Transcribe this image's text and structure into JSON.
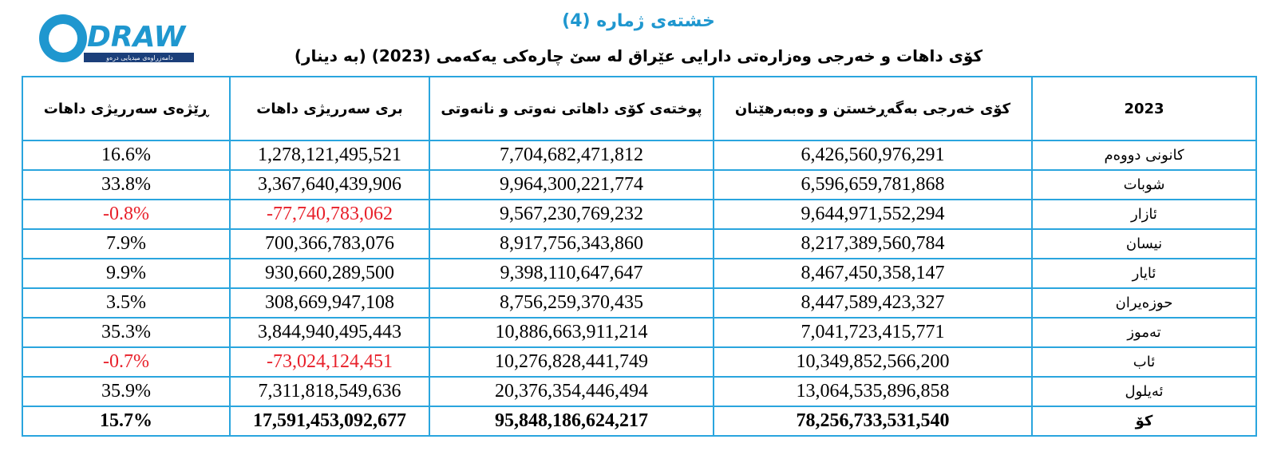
{
  "logo": {
    "name": "DRAW",
    "tagline": "دامەزراوەی میدیایی درەو"
  },
  "header": {
    "title": "خشتەی ژمارە (4)",
    "subtitle": "کۆی داهات و خەرجی وەزارەتی دارایی عێراق لە سێ چارەکی یەکەمی (2023) (بە دینار)",
    "title_color": "#1f97cf"
  },
  "table": {
    "columns": [
      "2023",
      "کۆی خەرجی بەگەڕخستن و وەبەرهێنان",
      "پوختەی کۆی داهاتی نەوتی و نانەوتی",
      "بری سەرریژی داهات",
      "ڕێژەی سەرریژی داهات"
    ],
    "rows": [
      [
        "کانونی دووەم",
        "6,426,560,976,291",
        "7,704,682,471,812",
        "1,278,121,495,521",
        "16.6%"
      ],
      [
        "شوبات",
        "6,596,659,781,868",
        "9,964,300,221,774",
        "3,367,640,439,906",
        "33.8%"
      ],
      [
        "ئازار",
        "9,644,971,552,294",
        "9,567,230,769,232",
        "-77,740,783,062",
        "-0.8%"
      ],
      [
        "نیسان",
        "8,217,389,560,784",
        "8,917,756,343,860",
        "700,366,783,076",
        "7.9%"
      ],
      [
        "ئایار",
        "8,467,450,358,147",
        "9,398,110,647,647",
        "930,660,289,500",
        "9.9%"
      ],
      [
        "حوزەیران",
        "8,447,589,423,327",
        "8,756,259,370,435",
        "308,669,947,108",
        "3.5%"
      ],
      [
        "تەموز",
        "7,041,723,415,771",
        "10,886,663,911,214",
        "3,844,940,495,443",
        "35.3%"
      ],
      [
        "ئاب",
        "10,349,852,566,200",
        "10,276,828,441,749",
        "-73,024,124,451",
        "-0.7%"
      ],
      [
        "ئەیلول",
        "13,064,535,896,858",
        "20,376,354,446,494",
        "7,311,818,549,636",
        "35.9%"
      ],
      [
        "کۆ",
        "78,256,733,531,540",
        "95,848,186,624,217",
        "17,591,453,092,677",
        "15.7%"
      ]
    ],
    "total_row_bold": true,
    "negative_color": "#e8202a",
    "border_color": "#2aa5de"
  }
}
